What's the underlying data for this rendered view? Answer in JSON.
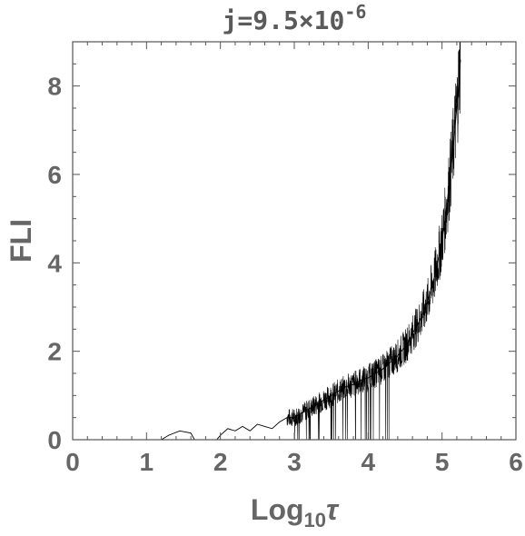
{
  "chart_data": {
    "type": "line",
    "title": "j=9.5×10",
    "title_superscript": "-6",
    "xlabel": "Log",
    "xlabel_subscript": "10",
    "xlabel_symbol": "τ",
    "ylabel": "FLI",
    "xlim": [
      0,
      6
    ],
    "ylim": [
      0,
      9
    ],
    "x_ticks": [
      0,
      1,
      2,
      3,
      4,
      5,
      6
    ],
    "y_ticks": [
      0,
      2,
      4,
      6,
      8
    ],
    "grid": false,
    "series": [
      {
        "color": "#000000",
        "x": [
          1.2,
          1.3,
          1.45,
          1.6,
          1.65,
          1.95,
          2.0,
          2.1,
          2.2,
          2.3,
          2.4,
          2.5,
          2.6,
          2.7,
          2.8,
          2.9,
          3.0,
          3.1,
          3.2,
          3.3,
          3.4,
          3.5,
          3.6,
          3.7,
          3.8,
          3.9,
          4.0,
          4.1,
          4.2,
          4.3,
          4.4,
          4.5,
          4.6,
          4.7,
          4.8,
          4.9,
          5.0,
          5.05,
          5.1,
          5.15,
          5.2,
          5.25
        ],
        "y": [
          0.0,
          0.1,
          0.2,
          0.15,
          0.0,
          0.0,
          0.1,
          0.25,
          0.2,
          0.3,
          0.2,
          0.35,
          0.3,
          0.25,
          0.4,
          0.5,
          0.5,
          0.6,
          0.7,
          0.8,
          0.9,
          1.0,
          1.1,
          1.2,
          1.25,
          1.35,
          1.4,
          1.5,
          1.6,
          1.75,
          1.9,
          2.1,
          2.4,
          2.7,
          3.1,
          3.7,
          4.5,
          5.1,
          5.8,
          6.6,
          7.5,
          8.6
        ]
      }
    ]
  }
}
